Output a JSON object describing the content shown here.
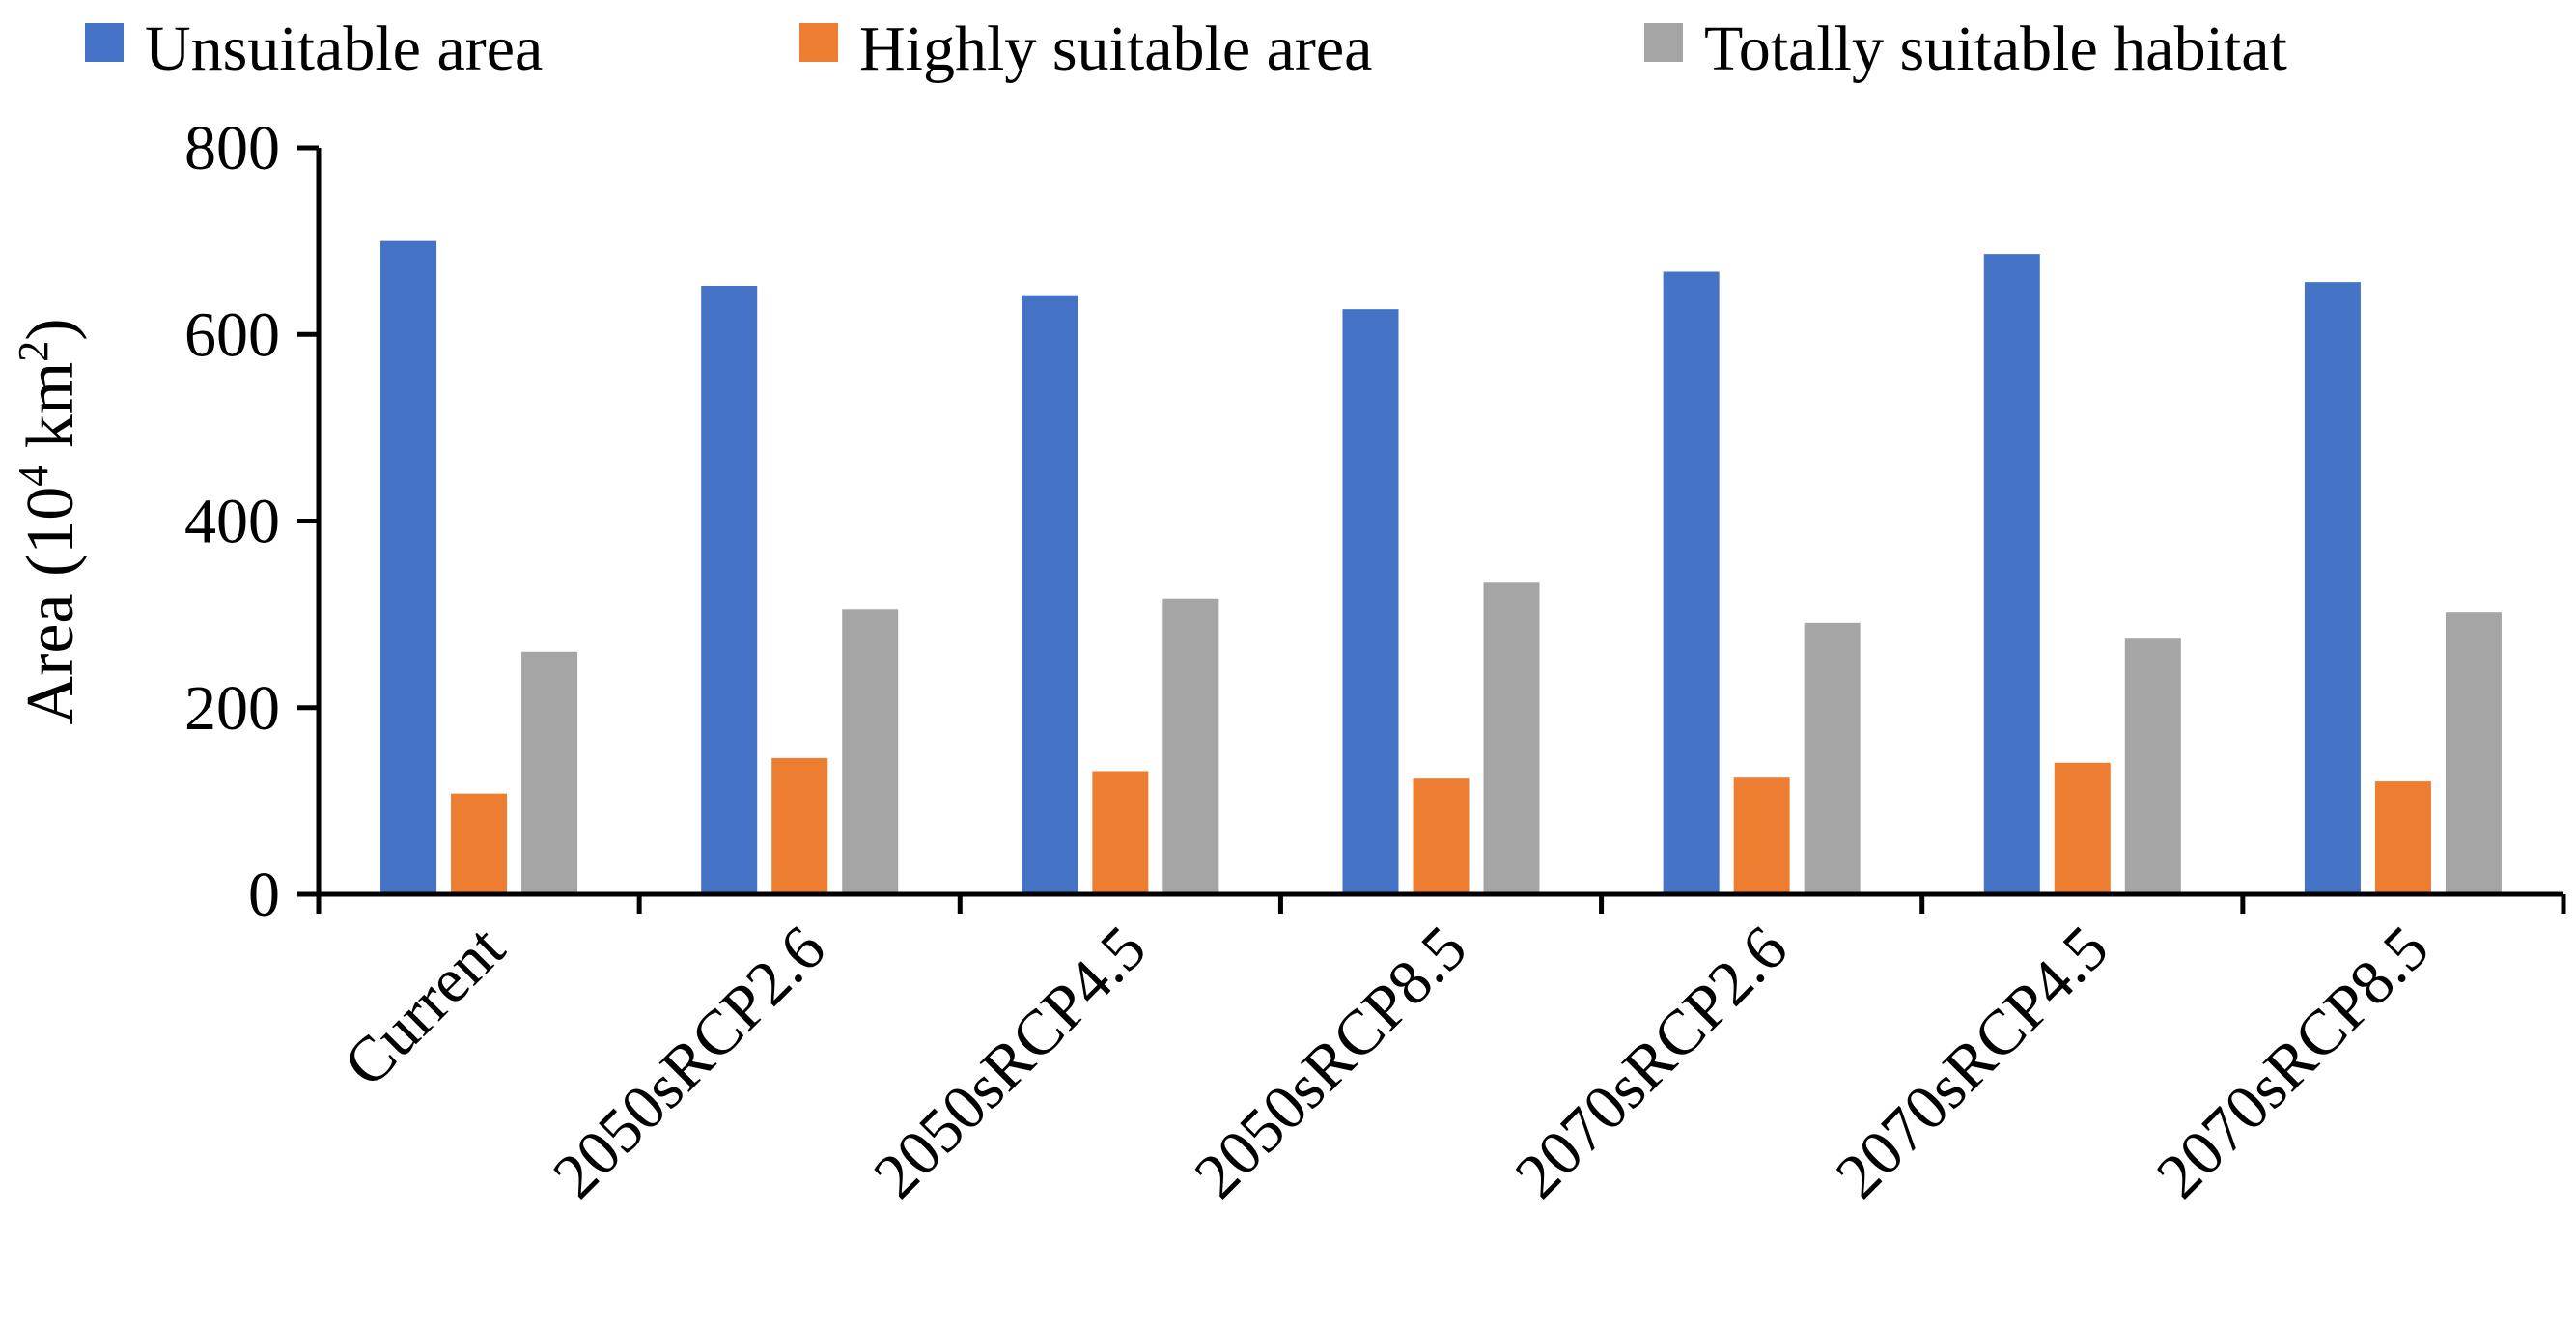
{
  "chart_data": {
    "type": "bar",
    "categories": [
      "Current",
      "2050sRCP2.6",
      "2050sRCP4.5",
      "2050sRCP8.5",
      "2070sRCP2.6",
      "2070sRCP4.5",
      "2070sRCP8.5"
    ],
    "series": [
      {
        "name": "Unsuitable area",
        "color": "#4472C4",
        "values": [
          700,
          652,
          642,
          627,
          667,
          686,
          656
        ]
      },
      {
        "name": "Highly suitable area",
        "color": "#ED7D31",
        "values": [
          108,
          146,
          132,
          124,
          125,
          141,
          121
        ]
      },
      {
        "name": "Totally suitable habitat",
        "color": "#A5A5A5",
        "values": [
          260,
          305,
          317,
          334,
          291,
          274,
          302
        ]
      }
    ],
    "ylabel": "Area (10",
    "ylabel_sup": "4",
    "ylabel_unit": " km",
    "ylabel_unit_sup": "2",
    "ylabel_close": ")",
    "ylim": [
      0,
      800
    ],
    "yticks": [
      0,
      200,
      400,
      600,
      800
    ],
    "legend_position": "top"
  }
}
